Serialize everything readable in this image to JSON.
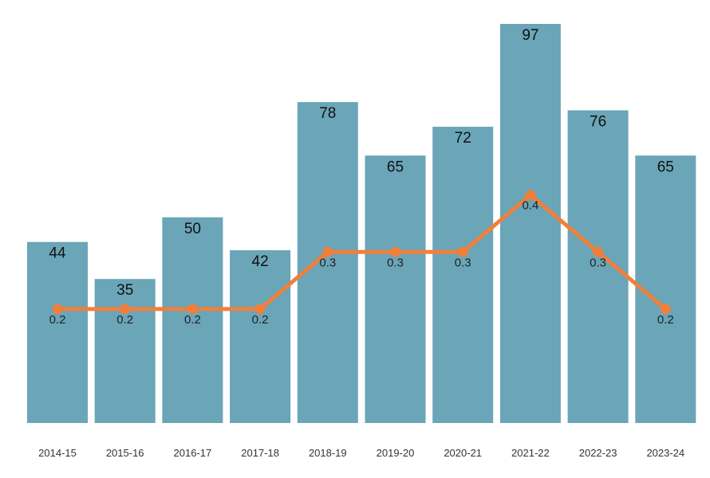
{
  "chart_data": {
    "type": "bar",
    "categories": [
      "2014-15",
      "2015-16",
      "2016-17",
      "2017-18",
      "2018-19",
      "2019-20",
      "2020-21",
      "2021-22",
      "2022-23",
      "2023-24"
    ],
    "series": [
      {
        "type": "bar",
        "values": [
          44,
          35,
          50,
          42,
          78,
          65,
          72,
          97,
          76,
          65
        ],
        "color": "#6aa5b8",
        "ylim": [
          0,
          97
        ]
      },
      {
        "type": "line",
        "values": [
          0.2,
          0.2,
          0.2,
          0.2,
          0.3,
          0.3,
          0.3,
          0.4,
          0.3,
          0.2
        ],
        "color": "#f07f3c",
        "ylim": [
          0,
          0.7
        ]
      }
    ],
    "title": "",
    "xlabel": "",
    "ylabel": "",
    "grid": false,
    "legend": "none"
  }
}
